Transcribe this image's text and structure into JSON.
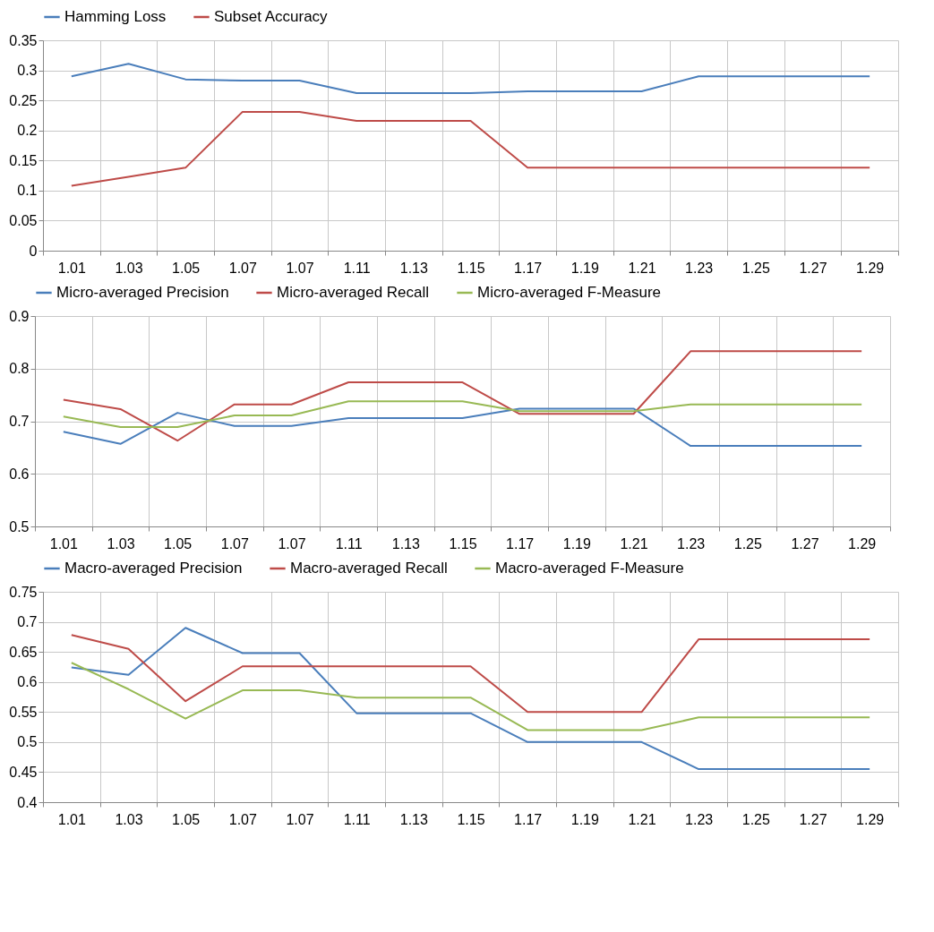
{
  "chart_data": [
    {
      "type": "line",
      "categories": [
        "1.01",
        "1.03",
        "1.05",
        "1.07",
        "1.07",
        "1.11",
        "1.13",
        "1.15",
        "1.17",
        "1.19",
        "1.21",
        "1.23",
        "1.25",
        "1.27",
        "1.29"
      ],
      "ylim": [
        0,
        0.35
      ],
      "yticks": [
        0,
        0.05,
        0.1,
        0.15,
        0.2,
        0.25,
        0.3,
        0.35
      ],
      "grid": true,
      "legend": "top",
      "series": [
        {
          "name": "Hamming Loss",
          "color": "#4a7ebb",
          "values": [
            0.29,
            0.311,
            0.285,
            0.283,
            0.283,
            0.262,
            0.262,
            0.262,
            0.265,
            0.265,
            0.265,
            0.29,
            0.29,
            0.29,
            0.29
          ]
        },
        {
          "name": "Subset Accuracy",
          "color": "#be4b48",
          "values": [
            0.108,
            0.123,
            0.138,
            0.231,
            0.231,
            0.216,
            0.216,
            0.216,
            0.138,
            0.138,
            0.138,
            0.138,
            0.138,
            0.138,
            0.138
          ]
        }
      ]
    },
    {
      "type": "line",
      "categories": [
        "1.01",
        "1.03",
        "1.05",
        "1.07",
        "1.07",
        "1.11",
        "1.13",
        "1.15",
        "1.17",
        "1.19",
        "1.21",
        "1.23",
        "1.25",
        "1.27",
        "1.29"
      ],
      "ylim": [
        0.5,
        0.9
      ],
      "yticks": [
        0.5,
        0.6,
        0.7,
        0.8,
        0.9
      ],
      "grid": true,
      "legend": "top",
      "series": [
        {
          "name": "Micro-averaged Precision",
          "color": "#4a7ebb",
          "values": [
            0.68,
            0.657,
            0.716,
            0.691,
            0.691,
            0.706,
            0.706,
            0.706,
            0.724,
            0.724,
            0.724,
            0.653,
            0.653,
            0.653,
            0.653
          ]
        },
        {
          "name": "Micro-averaged Recall",
          "color": "#be4b48",
          "values": [
            0.741,
            0.723,
            0.663,
            0.732,
            0.732,
            0.774,
            0.774,
            0.774,
            0.714,
            0.714,
            0.714,
            0.833,
            0.833,
            0.833,
            0.833
          ]
        },
        {
          "name": "Micro-averaged F-Measure",
          "color": "#98b954",
          "values": [
            0.709,
            0.689,
            0.689,
            0.711,
            0.711,
            0.738,
            0.738,
            0.738,
            0.719,
            0.719,
            0.719,
            0.732,
            0.732,
            0.732,
            0.732
          ]
        }
      ]
    },
    {
      "type": "line",
      "categories": [
        "1.01",
        "1.03",
        "1.05",
        "1.07",
        "1.07",
        "1.11",
        "1.13",
        "1.15",
        "1.17",
        "1.19",
        "1.21",
        "1.23",
        "1.25",
        "1.27",
        "1.29"
      ],
      "ylim": [
        0.4,
        0.75
      ],
      "yticks": [
        0.4,
        0.45,
        0.5,
        0.55,
        0.6,
        0.65,
        0.7,
        0.75
      ],
      "grid": true,
      "legend": "top",
      "series": [
        {
          "name": "Macro-averaged Precision",
          "color": "#4a7ebb",
          "values": [
            0.624,
            0.612,
            0.69,
            0.648,
            0.648,
            0.548,
            0.548,
            0.548,
            0.5,
            0.5,
            0.5,
            0.455,
            0.455,
            0.455,
            0.455
          ]
        },
        {
          "name": "Macro-averaged Recall",
          "color": "#be4b48",
          "values": [
            0.678,
            0.655,
            0.568,
            0.626,
            0.626,
            0.626,
            0.626,
            0.626,
            0.55,
            0.55,
            0.55,
            0.671,
            0.671,
            0.671,
            0.671
          ]
        },
        {
          "name": "Macro-averaged F-Measure",
          "color": "#98b954",
          "values": [
            0.632,
            0.588,
            0.539,
            0.586,
            0.586,
            0.574,
            0.574,
            0.574,
            0.52,
            0.52,
            0.52,
            0.541,
            0.541,
            0.541,
            0.541
          ]
        }
      ]
    }
  ]
}
